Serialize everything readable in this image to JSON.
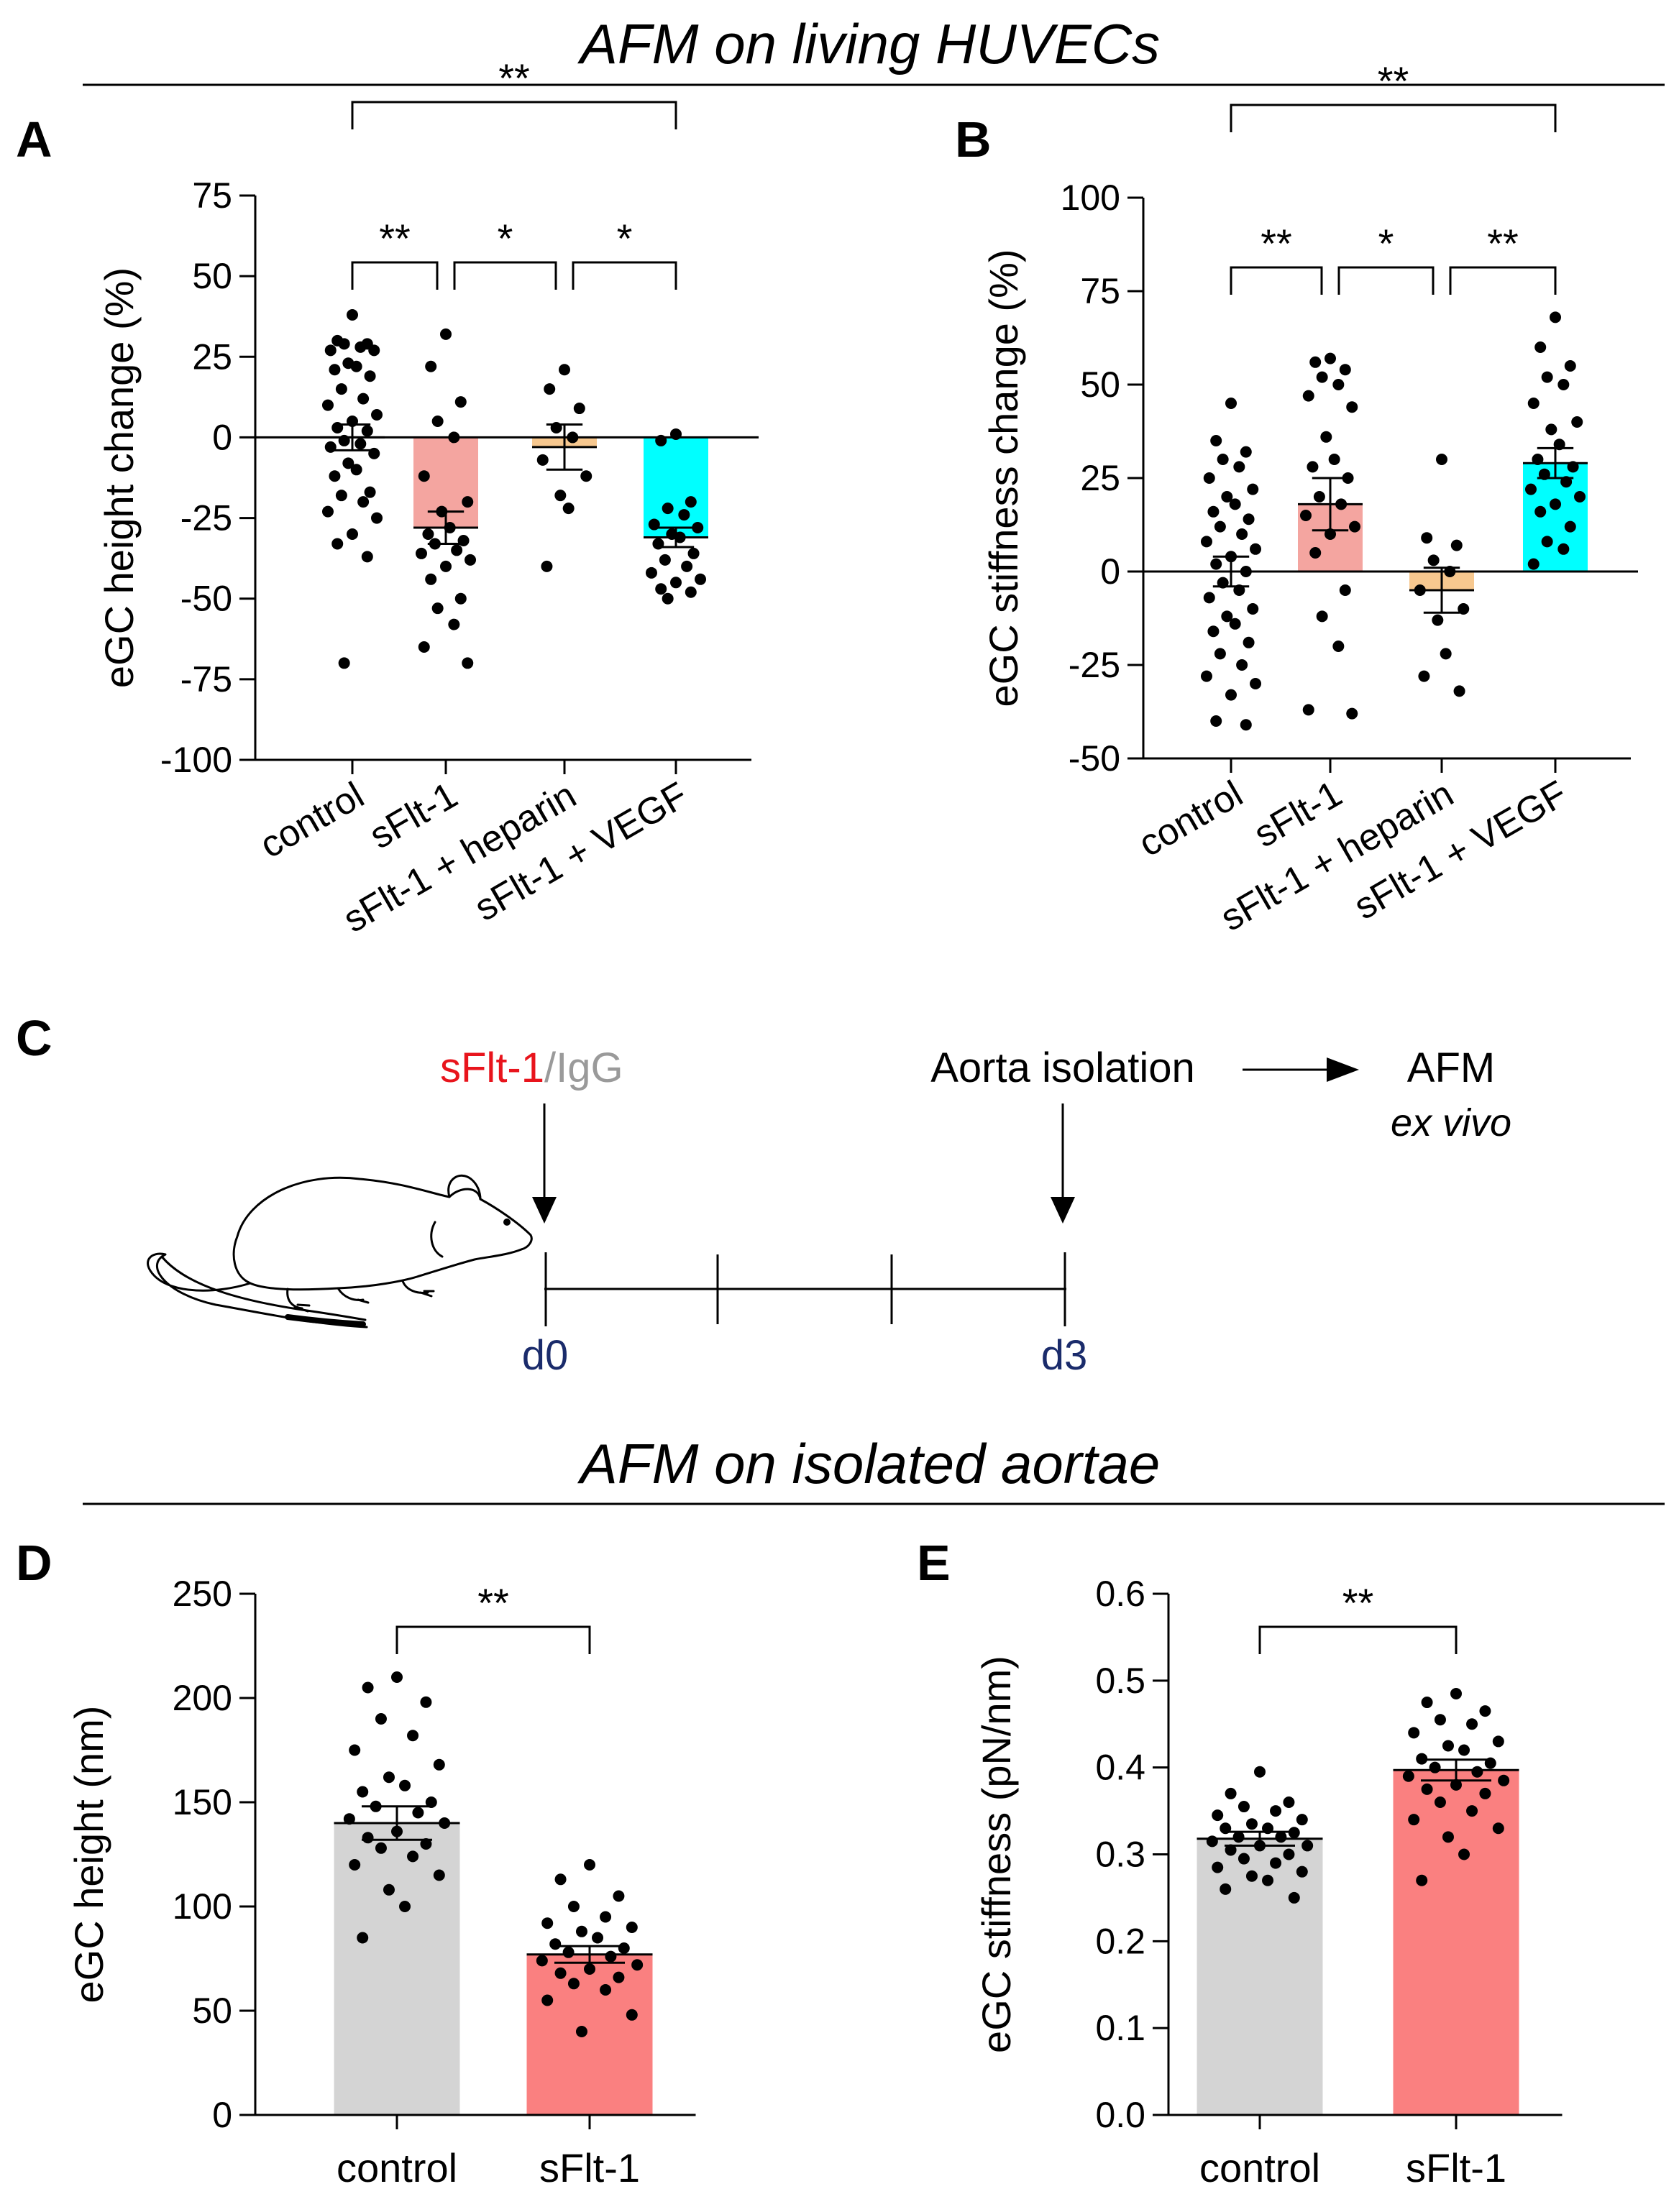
{
  "section_titles": {
    "top": "AFM on living HUVECs",
    "bottom": "AFM on isolated aortae"
  },
  "panel_letters": {
    "A": "A",
    "B": "B",
    "C": "C",
    "D": "D",
    "E": "E"
  },
  "chart_data": [
    {
      "id": "A",
      "type": "bar",
      "ylabel": "eGC height change (%)",
      "ylim": [
        -100,
        75
      ],
      "yticks": [
        75,
        50,
        25,
        0,
        -25,
        -50,
        -75,
        -100
      ],
      "ytick_labels": [
        "75",
        "50",
        "25",
        "0",
        "-25",
        "-50",
        "-75",
        "-100"
      ],
      "categories": [
        "control",
        "sFlt-1",
        "sFlt-1 + heparin",
        "sFlt-1 + VEGF"
      ],
      "colors": [
        "#d4d4d4",
        "#f4a5a0",
        "#f7c88f",
        "#00ffff"
      ],
      "values": [
        0,
        -28,
        -3,
        -31
      ],
      "sem": [
        4,
        5,
        7,
        3
      ],
      "points": [
        [
          38,
          30,
          29,
          29,
          28,
          27,
          27,
          23,
          22,
          21,
          19,
          15,
          12,
          10,
          7,
          5,
          3,
          2,
          -1,
          -2,
          -3,
          -5,
          -8,
          -10,
          -12,
          -17,
          -18,
          -20,
          -23,
          -25,
          -30,
          -33,
          -37,
          -70
        ],
        [
          32,
          22,
          11,
          5,
          0,
          -12,
          -20,
          -23,
          -28,
          -30,
          -32,
          -33,
          -35,
          -36,
          -38,
          -40,
          -44,
          -50,
          -53,
          -58,
          -65,
          -70
        ],
        [
          21,
          15,
          9,
          3,
          0,
          -7,
          -12,
          -18,
          -22,
          -40
        ],
        [
          1,
          -1,
          -20,
          -22,
          -24,
          -27,
          -28,
          -30,
          -31,
          -33,
          -36,
          -38,
          -40,
          -42,
          -44,
          -45,
          -47,
          -48,
          -50
        ]
      ],
      "brackets": [
        {
          "from": 0,
          "to": 3,
          "label": "**",
          "level": 2
        },
        {
          "from": 0,
          "to": 1,
          "label": "**",
          "level": 1
        },
        {
          "from": 1,
          "to": 2,
          "label": "*",
          "level": 1
        },
        {
          "from": 2,
          "to": 3,
          "label": "*",
          "level": 1
        }
      ]
    },
    {
      "id": "B",
      "type": "bar",
      "ylabel": "eGC stiffness change (%)",
      "ylim": [
        -50,
        100
      ],
      "yticks": [
        100,
        75,
        50,
        25,
        0,
        -25,
        -50
      ],
      "ytick_labels": [
        "100",
        "75",
        "50",
        "25",
        "0",
        "-25",
        "-50"
      ],
      "categories": [
        "control",
        "sFlt-1",
        "sFlt-1 + heparin",
        "sFlt-1 + VEGF"
      ],
      "colors": [
        "#d4d4d4",
        "#f4a5a0",
        "#f7c88f",
        "#00ffff"
      ],
      "values": [
        0,
        18,
        -5,
        29
      ],
      "sem": [
        4,
        7,
        6,
        4
      ],
      "points": [
        [
          45,
          35,
          32,
          30,
          28,
          25,
          22,
          20,
          18,
          16,
          14,
          12,
          10,
          8,
          6,
          4,
          2,
          0,
          -3,
          -5,
          -7,
          -10,
          -12,
          -14,
          -16,
          -19,
          -22,
          -25,
          -28,
          -30,
          -33,
          -40,
          -41
        ],
        [
          57,
          56,
          54,
          52,
          50,
          47,
          44,
          36,
          30,
          28,
          25,
          20,
          18,
          15,
          12,
          10,
          5,
          -5,
          -12,
          -20,
          -37,
          -38
        ],
        [
          30,
          9,
          7,
          3,
          0,
          -5,
          -10,
          -13,
          -22,
          -28,
          -32
        ],
        [
          68,
          60,
          55,
          52,
          50,
          45,
          40,
          38,
          34,
          30,
          28,
          26,
          24,
          22,
          20,
          18,
          16,
          12,
          8,
          6,
          2
        ]
      ],
      "brackets": [
        {
          "from": 0,
          "to": 3,
          "label": "**",
          "level": 2
        },
        {
          "from": 0,
          "to": 1,
          "label": "**",
          "level": 1
        },
        {
          "from": 1,
          "to": 2,
          "label": "*",
          "level": 1
        },
        {
          "from": 2,
          "to": 3,
          "label": "**",
          "level": 1
        }
      ]
    },
    {
      "id": "D",
      "type": "bar",
      "ylabel": "eGC height (nm)",
      "ylim": [
        0,
        250
      ],
      "yticks": [
        250,
        200,
        150,
        100,
        50,
        0
      ],
      "ytick_labels": [
        "250",
        "200",
        "150",
        "100",
        "50",
        "0"
      ],
      "categories": [
        "control",
        "sFlt-1"
      ],
      "colors": [
        "#d4d4d4",
        "#fa8080"
      ],
      "values": [
        140,
        77
      ],
      "sem": [
        8,
        4
      ],
      "points": [
        [
          210,
          205,
          198,
          190,
          182,
          175,
          168,
          162,
          158,
          155,
          150,
          148,
          145,
          142,
          140,
          136,
          133,
          130,
          128,
          124,
          120,
          115,
          108,
          100,
          85
        ],
        [
          120,
          113,
          105,
          100,
          95,
          92,
          90,
          88,
          85,
          82,
          80,
          78,
          76,
          74,
          72,
          70,
          68,
          66,
          63,
          60,
          55,
          48,
          40
        ]
      ],
      "brackets": [
        {
          "from": 0,
          "to": 1,
          "label": "**",
          "level": 1
        }
      ]
    },
    {
      "id": "E",
      "type": "bar",
      "ylabel": "eGC stiffness (pN/nm)",
      "ylim": [
        0,
        0.6
      ],
      "yticks": [
        0.6,
        0.5,
        0.4,
        0.3,
        0.2,
        0.1,
        0.0
      ],
      "ytick_labels": [
        "0.6",
        "0.5",
        "0.4",
        "0.3",
        "0.2",
        "0.1",
        "0.0"
      ],
      "categories": [
        "control",
        "sFlt-1"
      ],
      "colors": [
        "#d4d4d4",
        "#fa8080"
      ],
      "values": [
        0.318,
        0.397
      ],
      "sem": [
        0.008,
        0.012
      ],
      "points": [
        [
          0.395,
          0.37,
          0.36,
          0.355,
          0.35,
          0.345,
          0.34,
          0.335,
          0.33,
          0.33,
          0.325,
          0.32,
          0.32,
          0.315,
          0.31,
          0.31,
          0.305,
          0.3,
          0.295,
          0.29,
          0.285,
          0.28,
          0.275,
          0.27,
          0.26,
          0.25
        ],
        [
          0.485,
          0.475,
          0.465,
          0.455,
          0.45,
          0.44,
          0.43,
          0.425,
          0.42,
          0.41,
          0.405,
          0.4,
          0.395,
          0.39,
          0.385,
          0.38,
          0.375,
          0.37,
          0.36,
          0.35,
          0.34,
          0.33,
          0.32,
          0.3,
          0.27
        ]
      ],
      "brackets": [
        {
          "from": 0,
          "to": 1,
          "label": "**",
          "level": 1
        }
      ]
    }
  ],
  "timeline": {
    "injection_main": "sFlt-1",
    "injection_separator": "/",
    "injection_control": "IgG",
    "aorta_label": "Aorta isolation",
    "afm_label": "AFM",
    "ex_vivo_label": "ex vivo",
    "day_start": "d0",
    "day_end": "d3",
    "colors": {
      "sflt": "#e8141c",
      "igg": "#9a9a9a",
      "days": "#1a2b6b"
    }
  }
}
